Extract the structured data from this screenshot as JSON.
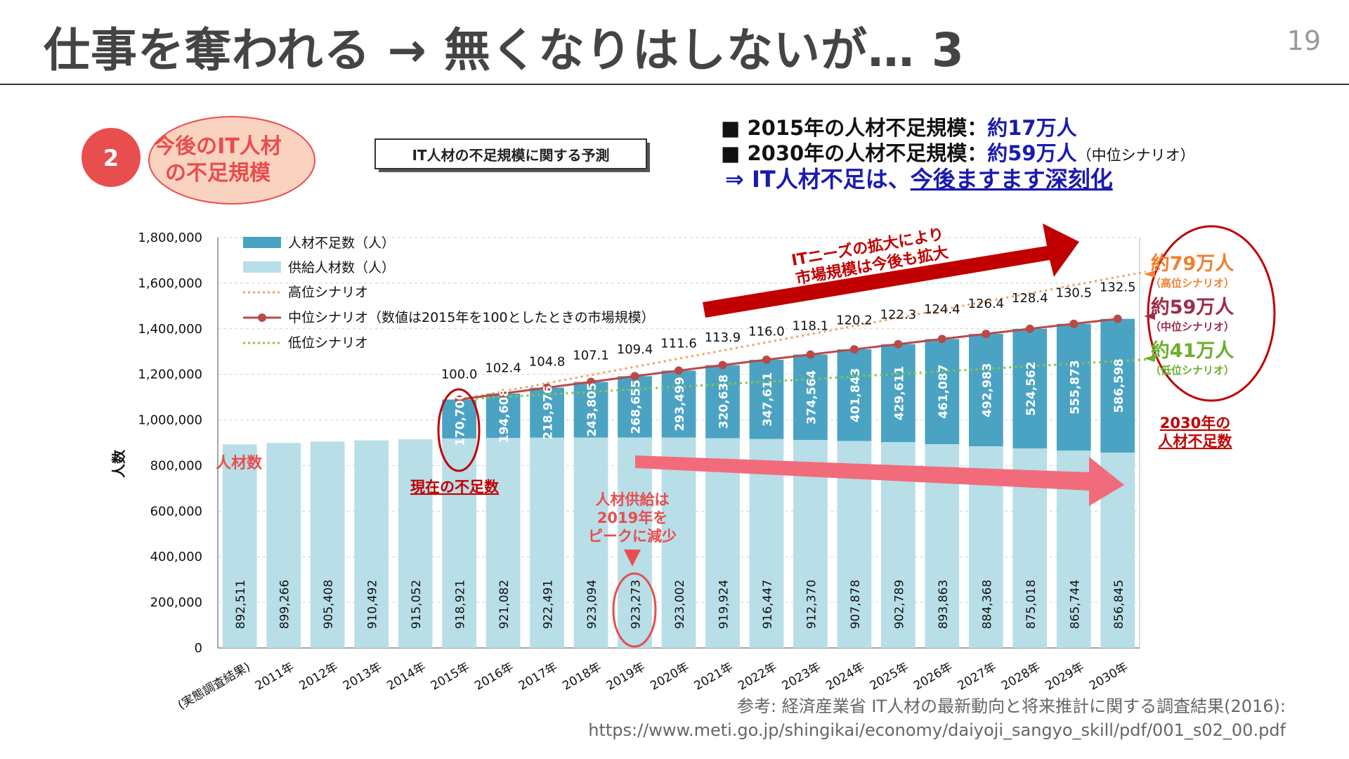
{
  "slide": {
    "title": "仕事を奪われる → 無くなりはしないが… 3",
    "page_number": "19"
  },
  "badge": {
    "number": "2",
    "label_line1": "今後のIT人材",
    "label_line2": "の不足規模"
  },
  "chart_box_title": "IT人材の不足規模に関する予測",
  "summary": {
    "line1_prefix": "■ 2015年の人材不足規模：",
    "line1_value": "約17万人",
    "line2_prefix": "■ 2030年の人材不足規模：",
    "line2_value": "約59万人",
    "line2_suffix": "（中位シナリオ）",
    "conclusion_prefix": "⇒ IT人材不足は、",
    "conclusion_emph": "今後ますます深刻化"
  },
  "annotations": {
    "arrow_top_line1": "ITニーズの拡大により",
    "arrow_top_line2": "市場規模は今後も拡大",
    "jinzai_su": "人材数",
    "current_shortage": "現在の不足数",
    "supply_peak_line1": "人材供給は",
    "supply_peak_line2": "2019年を",
    "supply_peak_line3": "ピークに減少",
    "high_value": "約79万人",
    "high_label": "（高位シナリオ）",
    "mid_value": "約59万人",
    "mid_label": "（中位シナリオ）",
    "low_value": "約41万人",
    "low_label": "（低位シナリオ）",
    "shortage_2030_line1": "2030年の",
    "shortage_2030_line2": "人材不足数"
  },
  "source": {
    "line1": "参考: 経済産業省 IT人材の最新動向と将来推計に関する調査結果(2016):",
    "line2": "https://www.meti.go.jp/shingikai/economy/daiyoji_sangyo_skill/pdf/001_s02_00.pdf"
  },
  "colors": {
    "shortage_bar": "#4BA3C3",
    "supply_bar": "#B8DEE8",
    "high_line": "#F0A060",
    "mid_line": "#B94A48",
    "low_line": "#8CC63F",
    "accent_red": "#C00000",
    "accent_blue": "#1A1AB0",
    "badge_fill": "#FAD2C0",
    "badge_circle": "#E84E4E"
  },
  "chart_data": {
    "type": "bar",
    "categories": [
      "(実態調査結果)",
      "2011年",
      "2012年",
      "2013年",
      "2014年",
      "2015年",
      "2016年",
      "2017年",
      "2018年",
      "2019年",
      "2020年",
      "2021年",
      "2022年",
      "2023年",
      "2024年",
      "2025年",
      "2026年",
      "2027年",
      "2028年",
      "2029年",
      "2030年"
    ],
    "ylabel": "人数",
    "ylim": [
      0,
      1800000
    ],
    "yticks": [
      "0",
      "200,000",
      "400,000",
      "600,000",
      "800,000",
      "1,000,000",
      "1,200,000",
      "1,400,000",
      "1,600,000",
      "1,800,000"
    ],
    "legend": [
      "人材不足数（人）",
      "供給人材数（人）",
      "高位シナリオ",
      "中位シナリオ（数値は2015年を100としたときの市場規模）",
      "低位シナリオ"
    ],
    "supply": [
      892511,
      899266,
      905408,
      910492,
      915052,
      918921,
      921082,
      922491,
      923094,
      923273,
      923002,
      919924,
      916447,
      912370,
      907878,
      902789,
      893863,
      884368,
      875018,
      865744,
      856845
    ],
    "supply_labels": [
      "892,511",
      "899,266",
      "905,408",
      "910,492",
      "915,052",
      "918,921",
      "921,082",
      "922,491",
      "923,094",
      "923,273",
      "923,002",
      "919,924",
      "916,447",
      "912,370",
      "907,878",
      "902,789",
      "893,863",
      "884,368",
      "875,018",
      "865,744",
      "856,845"
    ],
    "shortage": [
      null,
      null,
      null,
      null,
      null,
      170700,
      194608,
      218976,
      243805,
      268655,
      293499,
      320638,
      347611,
      374564,
      401843,
      429611,
      461087,
      492983,
      524562,
      555873,
      586598
    ],
    "shortage_labels": [
      "",
      "",
      "",
      "",
      "",
      "170,700",
      "194,608",
      "218,976",
      "243,805",
      "268,655",
      "293,499",
      "320,638",
      "347,611",
      "374,564",
      "401,843",
      "429,611",
      "461,087",
      "492,983",
      "524,562",
      "555,873",
      "586,598"
    ],
    "market_index": [
      null,
      null,
      null,
      null,
      null,
      100.0,
      102.4,
      104.8,
      107.1,
      109.4,
      111.6,
      113.9,
      116.0,
      118.1,
      120.2,
      122.3,
      124.4,
      126.4,
      128.4,
      130.5,
      132.5
    ],
    "market_index_labels": [
      "",
      "",
      "",
      "",
      "",
      "100.0",
      "102.4",
      "104.8",
      "107.1",
      "109.4",
      "111.6",
      "113.9",
      "116.0",
      "118.1",
      "120.2",
      "122.3",
      "124.4",
      "126.4",
      "128.4",
      "130.5",
      "132.5"
    ],
    "high_scenario_endpoints": [
      1089621,
      1650000
    ],
    "low_scenario_endpoints": [
      1089621,
      1265000
    ]
  }
}
